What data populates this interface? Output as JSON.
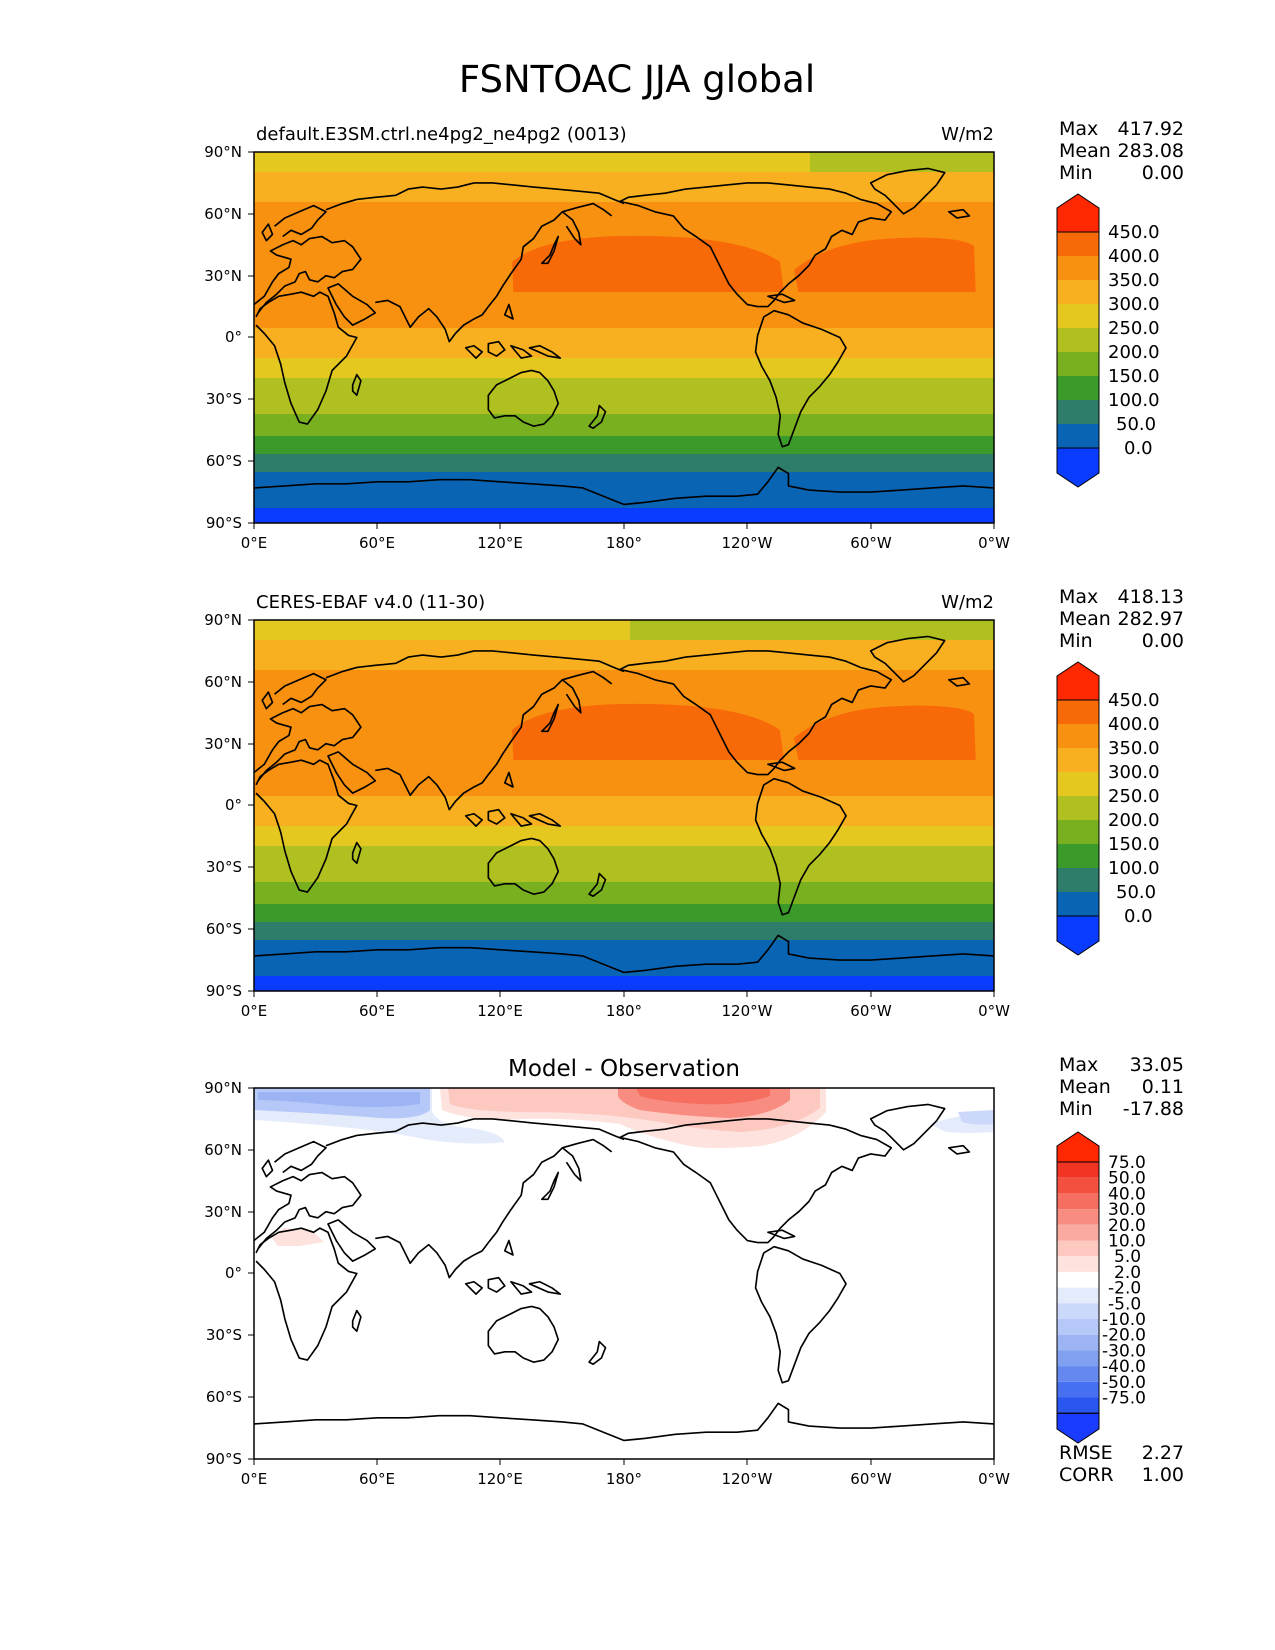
{
  "title": "FSNTOAC JJA global",
  "axes": {
    "lat_ticks": [
      "90°N",
      "60°N",
      "30°N",
      "0°",
      "30°S",
      "60°S",
      "90°S"
    ],
    "lon_ticks": [
      "0°E",
      "60°E",
      "120°E",
      "180°",
      "120°W",
      "60°W",
      "0°W"
    ]
  },
  "colors": {
    "main": [
      "#0a3cff",
      "#0a64b4",
      "#2e7d6b",
      "#3a9b2a",
      "#78b020",
      "#b0c020",
      "#e4c820",
      "#f8b020",
      "#f89010",
      "#f86a08",
      "#ff2800"
    ],
    "diff_neg": [
      "#1a3cff",
      "#2a56f0",
      "#4670f0",
      "#6488f0",
      "#82a0f0",
      "#9cb4f4",
      "#b6c8f8",
      "#ccd8fa",
      "#e4ecfc"
    ],
    "diff_pos": [
      "#fde2de",
      "#fcc8c0",
      "#faaaa0",
      "#f88c80",
      "#f66e60",
      "#f45040",
      "#f23424",
      "#ff2800"
    ]
  },
  "panels": [
    {
      "id": "model",
      "left_title": "default.E3SM.ctrl.ne4pg2_ne4pg2 (0013)",
      "center_title": "",
      "units": "W/m2",
      "stats": [
        {
          "label": "Max",
          "value": "417.92"
        },
        {
          "label": "Mean",
          "value": "283.08"
        },
        {
          "label": "Min",
          "value": "0.00"
        }
      ],
      "colorbar": [
        "450.0",
        "400.0",
        "350.0",
        "300.0",
        "250.0",
        "200.0",
        "150.0",
        "100.0",
        "50.0",
        "0.0"
      ]
    },
    {
      "id": "obs",
      "left_title": "CERES-EBAF v4.0 (11-30)",
      "center_title": "",
      "units": "W/m2",
      "stats": [
        {
          "label": "Max",
          "value": "418.13"
        },
        {
          "label": "Mean",
          "value": "282.97"
        },
        {
          "label": "Min",
          "value": "0.00"
        }
      ],
      "colorbar": [
        "450.0",
        "400.0",
        "350.0",
        "300.0",
        "250.0",
        "200.0",
        "150.0",
        "100.0",
        "50.0",
        "0.0"
      ]
    },
    {
      "id": "diff",
      "left_title": "",
      "center_title": "Model - Observation",
      "units": "",
      "stats": [
        {
          "label": "Max",
          "value": "33.05"
        },
        {
          "label": "Mean",
          "value": "0.11"
        },
        {
          "label": "Min",
          "value": "-17.88"
        }
      ],
      "colorbar": [
        "75.0",
        "50.0",
        "40.0",
        "30.0",
        "20.0",
        "10.0",
        "5.0",
        "2.0",
        "-2.0",
        "-5.0",
        "-10.0",
        "-20.0",
        "-30.0",
        "-40.0",
        "-50.0",
        "-75.0"
      ],
      "extra_stats": [
        {
          "label": "RMSE",
          "value": "2.27"
        },
        {
          "label": "CORR",
          "value": "1.00"
        }
      ]
    }
  ]
}
